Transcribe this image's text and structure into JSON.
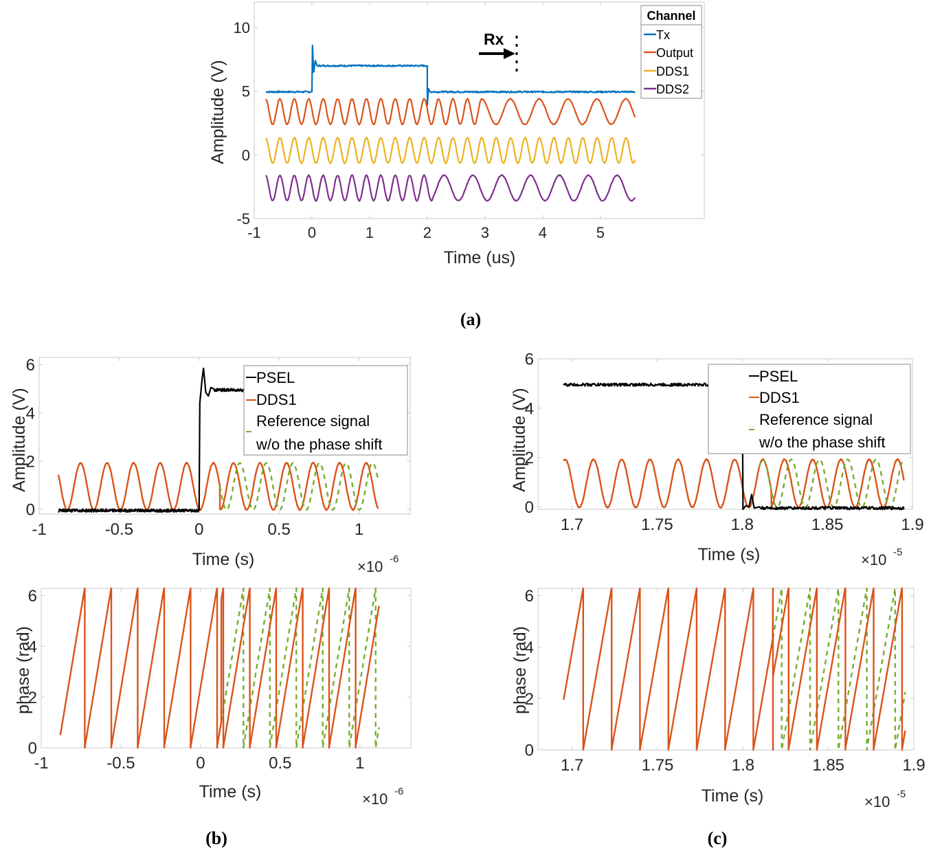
{
  "figure": {
    "captions": [
      "(a)",
      "(b)",
      "(c)"
    ]
  },
  "chart_data": [
    {
      "id": "a",
      "type": "line",
      "title": "",
      "xlabel": "Time (us)",
      "ylabel": "Amplitude (V)",
      "xlim": [
        -1,
        6.8
      ],
      "ylim": [
        -5,
        12
      ],
      "xticks": [
        -1,
        0,
        1,
        2,
        3,
        4,
        5
      ],
      "yticks": [
        -5,
        0,
        5,
        10
      ],
      "grid": false,
      "legend": {
        "title": "Channel",
        "placement": "top-right",
        "entries": [
          "Tx",
          "Output",
          "DDS1",
          "DDS2"
        ]
      },
      "annotation": {
        "text": "Rx",
        "x": 2.95,
        "arrow": "right-pointing to dotted marker"
      },
      "series": [
        {
          "name": "Tx",
          "color": "#0072BD",
          "kind": "pulse",
          "x_start": -0.8,
          "x_end": 5.6,
          "baseline": 4.95,
          "high": 7.0,
          "pulse_start": 0,
          "pulse_end": 2.0,
          "overshoot_peak": 8.6,
          "undershoot_min": 3.9
        },
        {
          "name": "Output",
          "color": "#D95319",
          "kind": "sine",
          "x_start": -0.8,
          "x_end": 5.6,
          "offset": 3.4,
          "amplitude": 1.0,
          "segments": [
            {
              "from": -0.8,
              "to": 2.95,
              "period": 0.25
            },
            {
              "from": 2.95,
              "to": 5.6,
              "period": 0.5
            }
          ]
        },
        {
          "name": "DDS1",
          "color": "#EDB120",
          "kind": "sine",
          "x_start": -0.8,
          "x_end": 5.6,
          "offset": 0.35,
          "amplitude": 1.0,
          "segments": [
            {
              "from": -0.8,
              "to": 5.6,
              "period": 0.25
            }
          ]
        },
        {
          "name": "DDS2",
          "color": "#7E2F8E",
          "kind": "sine",
          "x_start": -0.8,
          "x_end": 5.6,
          "offset": -2.6,
          "amplitude": 1.0,
          "segments": [
            {
              "from": -0.8,
              "to": 2.1,
              "period": 0.25
            },
            {
              "from": 2.1,
              "to": 5.6,
              "period": 0.5
            }
          ]
        }
      ]
    },
    {
      "id": "b-amplitude",
      "type": "line",
      "xlabel": "Time (s)",
      "ylabel": "Amplitude (V)",
      "x_exponent": "×10^-6",
      "xlim": [
        -1,
        1.32
      ],
      "ylim": [
        -0.2,
        6.3
      ],
      "xticks": [
        -1,
        -0.5,
        0,
        0.5,
        1
      ],
      "yticks": [
        0,
        2,
        4,
        6
      ],
      "legend": {
        "placement": "top-right",
        "entries": [
          "PSEL",
          "DDS1",
          "Reference signal w/o the phase shift"
        ]
      },
      "series": [
        {
          "name": "PSEL",
          "color": "#000000",
          "kind": "step",
          "x_start": -0.88,
          "x_end": 0.28,
          "low": -0.05,
          "high": 4.95,
          "step_at": 0.0,
          "overshoot_peak": 5.85
        },
        {
          "name": "DDS1",
          "color": "#D95319",
          "kind": "sine",
          "x_start": -0.88,
          "x_end": 1.12,
          "offset": 0.95,
          "amplitude": 0.97,
          "period": 0.166,
          "phase_jump_at": 0.13
        },
        {
          "name": "Reference signal w/o the phase shift",
          "color": "#77AC30",
          "dashed": true,
          "kind": "sine",
          "x_start": 0.13,
          "x_end": 1.12,
          "offset": 0.95,
          "amplitude": 0.97,
          "period": 0.166
        }
      ]
    },
    {
      "id": "b-phase",
      "type": "line",
      "xlabel": "Time (s)",
      "ylabel": "phase (rad)",
      "x_exponent": "×10^-6",
      "xlim": [
        -1,
        1.32
      ],
      "ylim": [
        0,
        6.28
      ],
      "xticks": [
        -1,
        -0.5,
        0,
        0.5,
        1
      ],
      "yticks": [
        0,
        2,
        4,
        6
      ],
      "series": [
        {
          "name": "DDS1",
          "color": "#D95319",
          "kind": "sawtooth",
          "x_start": -0.88,
          "x_end": 1.12,
          "period": 0.166,
          "phase_jump_at": 0.13
        },
        {
          "name": "Reference signal w/o the phase shift",
          "color": "#77AC30",
          "dashed": true,
          "kind": "sawtooth",
          "x_start": 0.13,
          "x_end": 1.12,
          "period": 0.166
        }
      ]
    },
    {
      "id": "c-amplitude",
      "type": "line",
      "xlabel": "Time (s)",
      "ylabel": "Amplitude (V)",
      "x_exponent": "×10^-5",
      "xlim": [
        1.68,
        1.9
      ],
      "ylim": [
        -0.1,
        6
      ],
      "xticks": [
        1.7,
        1.75,
        1.8,
        1.85,
        1.9
      ],
      "yticks": [
        0,
        2,
        4,
        6
      ],
      "legend": {
        "placement": "top-right",
        "entries": [
          "PSEL",
          "DDS1",
          "Reference signal w/o the phase shift"
        ]
      },
      "series": [
        {
          "name": "PSEL",
          "color": "#000000",
          "kind": "step-down",
          "x_start": 1.695,
          "x_end": 1.895,
          "high": 4.95,
          "low": -0.05,
          "step_at": 1.8,
          "ringing_peak": 0.5
        },
        {
          "name": "DDS1",
          "color": "#D95319",
          "kind": "sine",
          "x_start": 1.695,
          "x_end": 1.895,
          "offset": 0.95,
          "amplitude": 0.97,
          "period": 0.0166,
          "phase_jump_at": 1.817
        },
        {
          "name": "Reference signal w/o the phase shift",
          "color": "#77AC30",
          "dashed": true,
          "kind": "sine",
          "x_start": 1.81,
          "x_end": 1.895,
          "offset": 0.95,
          "amplitude": 0.97,
          "period": 0.0166
        }
      ]
    },
    {
      "id": "c-phase",
      "type": "line",
      "xlabel": "Time (s)",
      "ylabel": "phase (rad)",
      "x_exponent": "×10^-5",
      "xlim": [
        1.68,
        1.9
      ],
      "ylim": [
        0,
        6.28
      ],
      "xticks": [
        1.7,
        1.75,
        1.8,
        1.85,
        1.9
      ],
      "yticks": [
        0,
        2,
        4,
        6
      ],
      "series": [
        {
          "name": "DDS1",
          "color": "#D95319",
          "kind": "sawtooth",
          "x_start": 1.695,
          "x_end": 1.895,
          "period": 0.0166,
          "phase_jump_at": 1.8175
        },
        {
          "name": "Reference signal w/o the phase shift",
          "color": "#77AC30",
          "dashed": true,
          "kind": "sawtooth",
          "x_start": 1.8175,
          "x_end": 1.895,
          "period": 0.0166
        }
      ]
    }
  ],
  "texts": {
    "a_xlabel": "Time (us)",
    "a_ylabel": "Amplitude (V)",
    "a_legend_title": "Channel",
    "a_legend": [
      "Tx",
      "Output",
      "DDS1",
      "DDS2"
    ],
    "a_rx": "Rx",
    "b_top_xlabel": "Time (s)",
    "b_top_ylabel": "Amplitude (V)",
    "b_bot_xlabel": "Time (s)",
    "b_bot_ylabel": "phase (rad)",
    "c_top_xlabel": "Time (s)",
    "c_top_ylabel": "Amplitude (V)",
    "c_bot_xlabel": "Time (s)",
    "c_bot_ylabel": "phase (rad)",
    "exp_b": "-6",
    "exp_c": "-5",
    "times": "×10",
    "leg_psel": "PSEL",
    "leg_dds1": "DDS1",
    "leg_ref1": "Reference signal",
    "leg_ref2": "w/o the phase shift"
  }
}
